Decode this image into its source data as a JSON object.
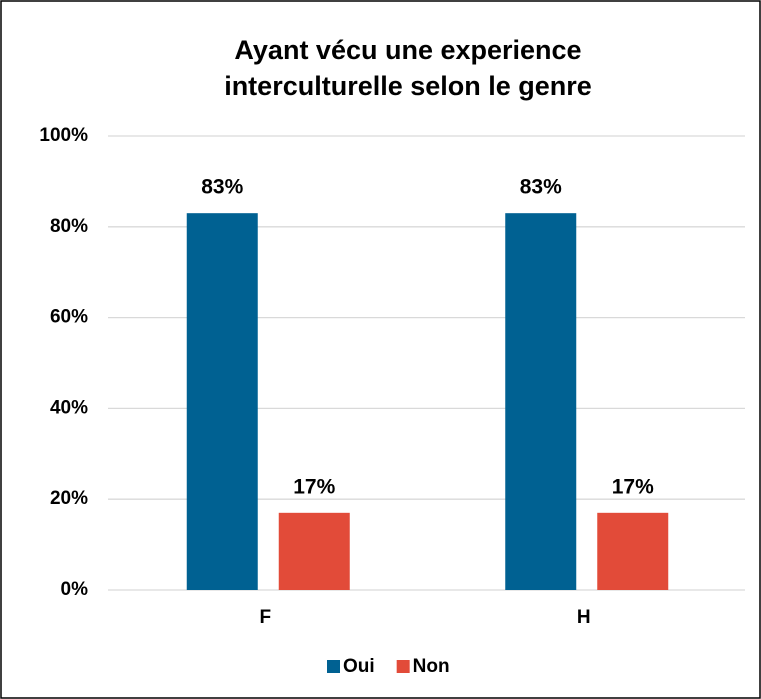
{
  "chart_data": {
    "type": "bar",
    "title": [
      "Ayant vécu une experience",
      "interculturelle selon le genre"
    ],
    "categories": [
      "F",
      "H"
    ],
    "series": [
      {
        "name": "Oui",
        "color": "#006192",
        "values": [
          83,
          83
        ],
        "value_labels": [
          "83%",
          "83%"
        ]
      },
      {
        "name": "Non",
        "color": "#e24b39",
        "values": [
          17,
          17
        ],
        "value_labels": [
          "17%",
          "17%"
        ]
      }
    ],
    "ylim": [
      0,
      100
    ],
    "yticks": [
      {
        "value": 0,
        "label": "0%"
      },
      {
        "value": 20,
        "label": "20%"
      },
      {
        "value": 40,
        "label": "40%"
      },
      {
        "value": 60,
        "label": "60%"
      },
      {
        "value": 80,
        "label": "80%"
      },
      {
        "value": 100,
        "label": "100%"
      }
    ],
    "grid": true,
    "legend": "bottom"
  }
}
